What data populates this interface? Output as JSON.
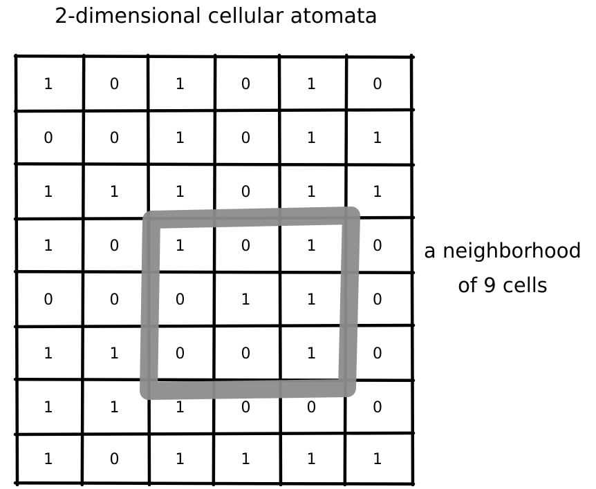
{
  "title": "2-dimensional cellular atomata",
  "grid": [
    [
      "1",
      "0",
      "1",
      "0",
      "1",
      "0"
    ],
    [
      "0",
      "0",
      "1",
      "0",
      "1",
      "1"
    ],
    [
      "1",
      "1",
      "1",
      "0",
      "1",
      "1"
    ],
    [
      "1",
      "0",
      "1",
      "0",
      "1",
      "0"
    ],
    [
      "0",
      "0",
      "0",
      "1",
      "1",
      "0"
    ],
    [
      "1",
      "1",
      "0",
      "0",
      "1",
      "0"
    ],
    [
      "1",
      "1",
      "1",
      "0",
      "0",
      "0"
    ],
    [
      "1",
      "0",
      "1",
      "1",
      "1",
      "1"
    ]
  ],
  "neighborhood": {
    "rows": [
      3,
      5
    ],
    "cols": [
      2,
      4
    ],
    "color": "#8c8c8c"
  },
  "annotation": {
    "line1": "a neighborhood",
    "line2": "of 9 cells"
  }
}
